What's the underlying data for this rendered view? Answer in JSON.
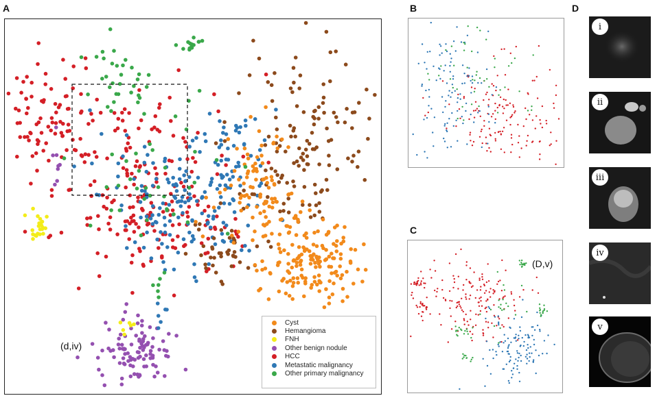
{
  "figure": {
    "panels": {
      "a": {
        "letter": "A",
        "annotation": "(d,iv)"
      },
      "b": {
        "letter": "B"
      },
      "c": {
        "letter": "C",
        "annotation": "(D,v)"
      },
      "d": {
        "letter": "D"
      }
    },
    "mri_labels": [
      "i",
      "ii",
      "iii",
      "iv",
      "v"
    ]
  },
  "chart_data": [
    {
      "type": "scatter",
      "panel": "A",
      "title": "",
      "xlabel": "",
      "ylabel": "",
      "grid": false,
      "legend_position": "bottom-right",
      "highlight_box": "dashed rectangle upper-left region",
      "series": [
        {
          "name": "Cyst",
          "color": "#f28a1b"
        },
        {
          "name": "Hemangioma",
          "color": "#8c4a1c"
        },
        {
          "name": "FNH",
          "color": "#f3ec1a"
        },
        {
          "name": "Other benign nodule",
          "color": "#9450b0"
        },
        {
          "name": "HCC",
          "color": "#d41f26"
        },
        {
          "name": "Metastatic malignancy",
          "color": "#2f78b5"
        },
        {
          "name": "Other primary malignancy",
          "color": "#3aa84a"
        }
      ]
    },
    {
      "type": "scatter",
      "panel": "B",
      "title": "",
      "series": [
        {
          "name": "HCC",
          "color": "#d41f26"
        },
        {
          "name": "Metastatic malignancy",
          "color": "#2f78b5"
        },
        {
          "name": "Other primary malignancy",
          "color": "#3aa84a"
        }
      ]
    },
    {
      "type": "scatter",
      "panel": "C",
      "title": "",
      "series": [
        {
          "name": "HCC",
          "color": "#d41f26"
        },
        {
          "name": "Metastatic malignancy",
          "color": "#2f78b5"
        },
        {
          "name": "Other primary malignancy",
          "color": "#3aa84a"
        }
      ]
    }
  ]
}
